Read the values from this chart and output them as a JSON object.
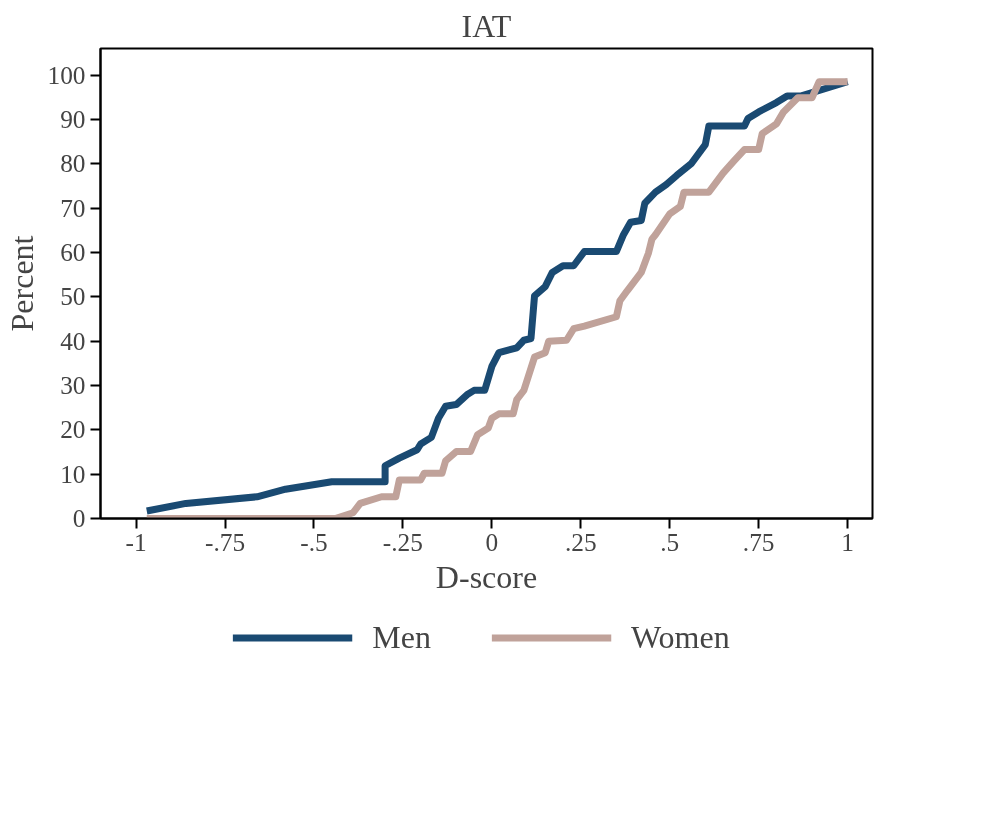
{
  "chart_data": {
    "type": "line",
    "title": "IAT",
    "xlabel": "D-score",
    "ylabel": "Percent",
    "xlim": [
      -1.1,
      1.07
    ],
    "ylim": [
      0,
      106
    ],
    "xticks": [
      {
        "value": -1,
        "label": "-1"
      },
      {
        "value": -0.75,
        "label": "-.75"
      },
      {
        "value": -0.5,
        "label": "-.5"
      },
      {
        "value": -0.25,
        "label": "-.25"
      },
      {
        "value": 0,
        "label": "0"
      },
      {
        "value": 0.25,
        "label": ".25"
      },
      {
        "value": 0.5,
        "label": ".5"
      },
      {
        "value": 0.75,
        "label": ".75"
      },
      {
        "value": 1,
        "label": "1"
      }
    ],
    "yticks": [
      0,
      10,
      20,
      30,
      40,
      50,
      60,
      70,
      80,
      90,
      100
    ],
    "grid": false,
    "legend": "bottom",
    "line_style": "solid",
    "series": [
      {
        "name": "Men",
        "color": "#1a4a72",
        "x": [
          -0.97,
          -0.86,
          -0.66,
          -0.58,
          -0.45,
          -0.3,
          -0.3,
          -0.26,
          -0.21,
          -0.2,
          -0.17,
          -0.15,
          -0.13,
          -0.1,
          -0.07,
          -0.05,
          -0.02,
          0.0,
          0.02,
          0.07,
          0.09,
          0.11,
          0.12,
          0.15,
          0.17,
          0.2,
          0.23,
          0.26,
          0.35,
          0.37,
          0.39,
          0.42,
          0.43,
          0.46,
          0.49,
          0.52,
          0.56,
          0.6,
          0.61,
          0.71,
          0.72,
          0.75,
          0.8,
          0.83,
          0.87,
          1.0
        ],
        "values": [
          1.7,
          3.4,
          4.9,
          6.6,
          8.3,
          8.3,
          11.9,
          13.6,
          15.5,
          16.8,
          18.3,
          22.6,
          25.3,
          25.7,
          27.9,
          28.9,
          28.9,
          34.3,
          37.4,
          38.5,
          40.2,
          40.6,
          50.2,
          52.3,
          55.5,
          57,
          57,
          60.2,
          60.2,
          64,
          66.8,
          67.2,
          71.1,
          73.6,
          75.3,
          77.4,
          80,
          84.3,
          88.5,
          88.5,
          90.2,
          91.7,
          93.8,
          95.3,
          95.3,
          98.5
        ]
      },
      {
        "name": "Women",
        "color": "#c0a29a",
        "x": [
          -0.97,
          -0.44,
          -0.39,
          -0.37,
          -0.31,
          -0.27,
          -0.26,
          -0.2,
          -0.19,
          -0.14,
          -0.13,
          -0.1,
          -0.06,
          -0.04,
          -0.01,
          0.0,
          0.02,
          0.06,
          0.07,
          0.09,
          0.12,
          0.15,
          0.16,
          0.21,
          0.23,
          0.26,
          0.35,
          0.36,
          0.38,
          0.42,
          0.44,
          0.45,
          0.46,
          0.5,
          0.53,
          0.54,
          0.61,
          0.65,
          0.68,
          0.71,
          0.75,
          0.76,
          0.8,
          0.82,
          0.86,
          0.9,
          0.92,
          1.0
        ],
        "values": [
          0,
          0,
          1.3,
          3.4,
          4.9,
          4.9,
          8.7,
          8.7,
          10.2,
          10.2,
          13,
          15.1,
          15.1,
          18.9,
          20.4,
          22.6,
          23.6,
          23.6,
          26.8,
          28.9,
          36.4,
          37.4,
          40,
          40.2,
          42.8,
          43.4,
          45.5,
          49.1,
          51.3,
          55.5,
          59.8,
          63,
          64,
          68.7,
          70.4,
          73.6,
          73.6,
          77.9,
          80.6,
          83.2,
          83.2,
          86.8,
          89,
          91.7,
          94.9,
          94.9,
          98.5,
          98.5
        ]
      }
    ]
  }
}
